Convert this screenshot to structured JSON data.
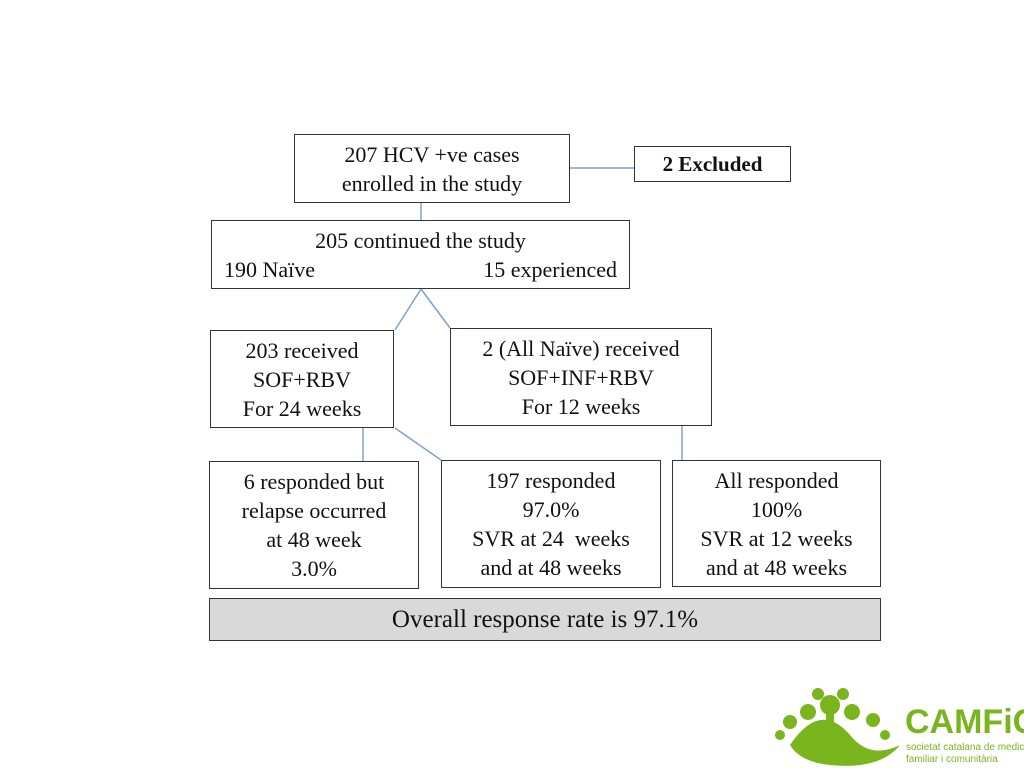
{
  "nodes": [
    {
      "lines": [
        "207 HCV +ve cases",
        "enrolled in the study"
      ]
    },
    {
      "lines": [
        "2 Excluded"
      ]
    },
    {
      "lines": [
        "205 continued the study"
      ],
      "left": "190 Naïve",
      "right": "15 experienced"
    },
    {
      "lines": [
        "203 received",
        "SOF+RBV",
        "For 24 weeks"
      ]
    },
    {
      "lines": [
        "2 (All Naïve) received",
        "SOF+INF+RBV",
        "For 12 weeks"
      ]
    },
    {
      "lines": [
        "6 responded but",
        "relapse occurred",
        "at 48 week",
        "3.0%"
      ]
    },
    {
      "lines": [
        "197 responded",
        "97.0%",
        "SVR at 24  weeks",
        "and at 48 weeks"
      ]
    },
    {
      "lines": [
        "All responded",
        "100%",
        "SVR at 12 weeks",
        "and at 48 weeks"
      ]
    },
    {
      "lines": [
        "Overall response rate is 97.1%"
      ]
    }
  ],
  "logo": {
    "name": "CAMFiC",
    "subtitle": [
      "societat catalana de medicina",
      "familiar i comunitària"
    ]
  }
}
